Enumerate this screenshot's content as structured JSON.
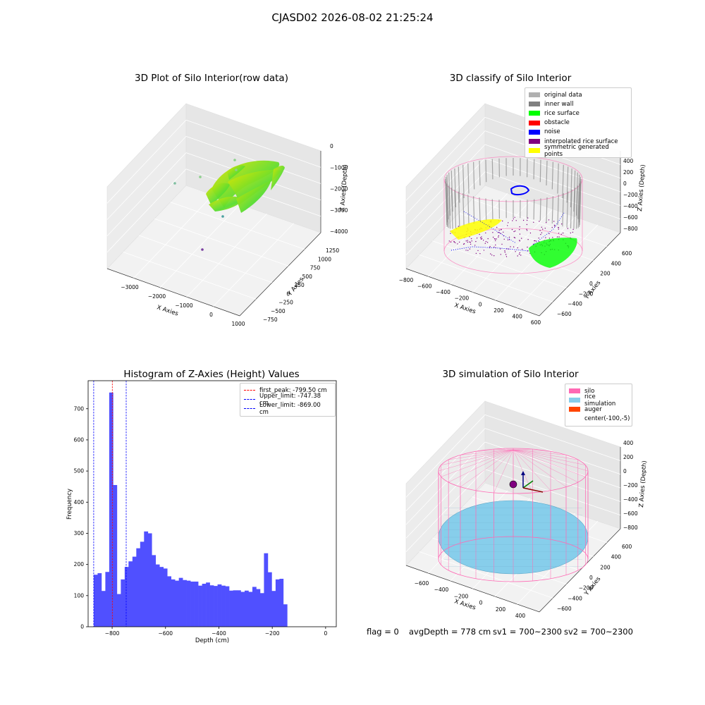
{
  "figure": {
    "suptitle": "CJASD02 2026-08-02 21:25:24",
    "footer": {
      "flag": "flag = 0",
      "avg_depth": "avgDepth = 778 cm",
      "sv1": "sv1 = 700~2300",
      "sv2": "sv2 = 700~2300"
    }
  },
  "colors": {
    "rice_yellow": "#e8e600",
    "rice_green": "#55dd33",
    "silo_pink": "#ff69b4",
    "rice_sim": "#87ceeb",
    "auger": "#ff4500",
    "noise": "#0000ff",
    "inner_wall": "#808080",
    "original": "#b0b0b0",
    "obstacle": "#ff0000",
    "interp": "#800080",
    "symmetric": "#ffff00",
    "hist_bar": "#5050ff"
  },
  "chart_data": [
    {
      "type": "scatter",
      "subtype": "3d-scatter",
      "title": "3D Plot of Silo Interior(row data)",
      "xlabel": "X Axies",
      "ylabel": "Y Axies",
      "zlabel": "Z Axies (Depth)",
      "x_ticks": [
        "−3000",
        "−2000",
        "−1000",
        "0",
        "1000"
      ],
      "y_ticks": [
        "−750",
        "−500",
        "−250",
        "0",
        "250",
        "500",
        "750",
        "1000",
        "1250"
      ],
      "z_ticks": [
        "0",
        "−1000",
        "−2000",
        "−3000",
        "−4000"
      ],
      "xlim": [
        -3600,
        1000
      ],
      "ylim": [
        -750,
        1400
      ],
      "zlim": [
        -4300,
        0
      ],
      "grid": true
    },
    {
      "type": "scatter",
      "subtype": "3d-scatter",
      "title": "3D classify of Silo Interior",
      "xlabel": "X Axies",
      "ylabel": "Y Axies",
      "zlabel": "Z Axies (Depth)",
      "x_ticks": [
        "−800",
        "−600",
        "−400",
        "−200",
        "0",
        "200",
        "400",
        "600"
      ],
      "y_ticks": [
        "−600",
        "−400",
        "−200",
        "0",
        "200",
        "400",
        "600"
      ],
      "z_ticks": [
        "400",
        "200",
        "0",
        "−200",
        "−400",
        "−600",
        "−800"
      ],
      "legend": {
        "position": "top-right",
        "entries": [
          {
            "label": "original data",
            "color": "#b0b0b0"
          },
          {
            "label": "inner wall",
            "color": "#808080"
          },
          {
            "label": "rice surface",
            "color": "#00ff00"
          },
          {
            "label": "obstacle",
            "color": "#ff0000"
          },
          {
            "label": "noise",
            "color": "#0000ff"
          },
          {
            "label": "interpolated rice surface",
            "color": "#800080"
          },
          {
            "label": "symmetric generated points",
            "color": "#ffff00"
          }
        ]
      },
      "grid": true
    },
    {
      "type": "bar",
      "subtype": "histogram",
      "title": "Histogram of Z-Axies (Height) Values",
      "xlabel": "Depth (cm)",
      "ylabel": "Frequency",
      "xlim": [
        -890,
        40
      ],
      "ylim": [
        0,
        790
      ],
      "x_ticks": [
        -800,
        -600,
        -400,
        -200,
        0
      ],
      "y_ticks": [
        0,
        100,
        200,
        300,
        400,
        500,
        600,
        700
      ],
      "bin_start": -869,
      "bin_width": 14.5,
      "values": [
        167,
        172,
        115,
        176,
        752,
        455,
        105,
        152,
        192,
        210,
        225,
        252,
        273,
        306,
        300,
        230,
        200,
        192,
        187,
        162,
        152,
        148,
        157,
        150,
        148,
        145,
        145,
        132,
        138,
        142,
        133,
        131,
        136,
        132,
        130,
        116,
        117,
        117,
        112,
        116,
        112,
        128,
        121,
        108,
        236,
        175,
        115,
        152,
        154,
        72
      ],
      "vlines": [
        {
          "label": "first_peak: -799.50 cm",
          "x": -799.5,
          "color": "#ff0000"
        },
        {
          "label": "Upper_limit: -747.38 cm",
          "x": -747.38,
          "color": "#0000ff"
        },
        {
          "label": "Lower_limit: -869.00 cm",
          "x": -869.0,
          "color": "#0000ff"
        }
      ],
      "legend": {
        "position": "top-right"
      },
      "grid": false
    },
    {
      "type": "scatter",
      "subtype": "3d-surface",
      "title": "3D simulation of Silo Interior",
      "xlabel": "X Axies",
      "ylabel": "Y Axies",
      "zlabel": "Z Axies (Depth)",
      "x_ticks": [
        "−600",
        "−400",
        "−200",
        "0",
        "200",
        "400"
      ],
      "y_ticks": [
        "−600",
        "−400",
        "−200",
        "0",
        "200",
        "400",
        "600"
      ],
      "z_ticks": [
        "400",
        "200",
        "0",
        "−200",
        "−400",
        "−600",
        "−800"
      ],
      "legend": {
        "position": "top-right",
        "entries": [
          {
            "label": "silo",
            "color": "#ff69b4"
          },
          {
            "label": "rice simulation",
            "color": "#87ceeb"
          },
          {
            "label": "auger",
            "color": "#ff4500"
          },
          {
            "label": "center(-100,-5)",
            "color": ""
          }
        ]
      },
      "grid": true
    }
  ]
}
